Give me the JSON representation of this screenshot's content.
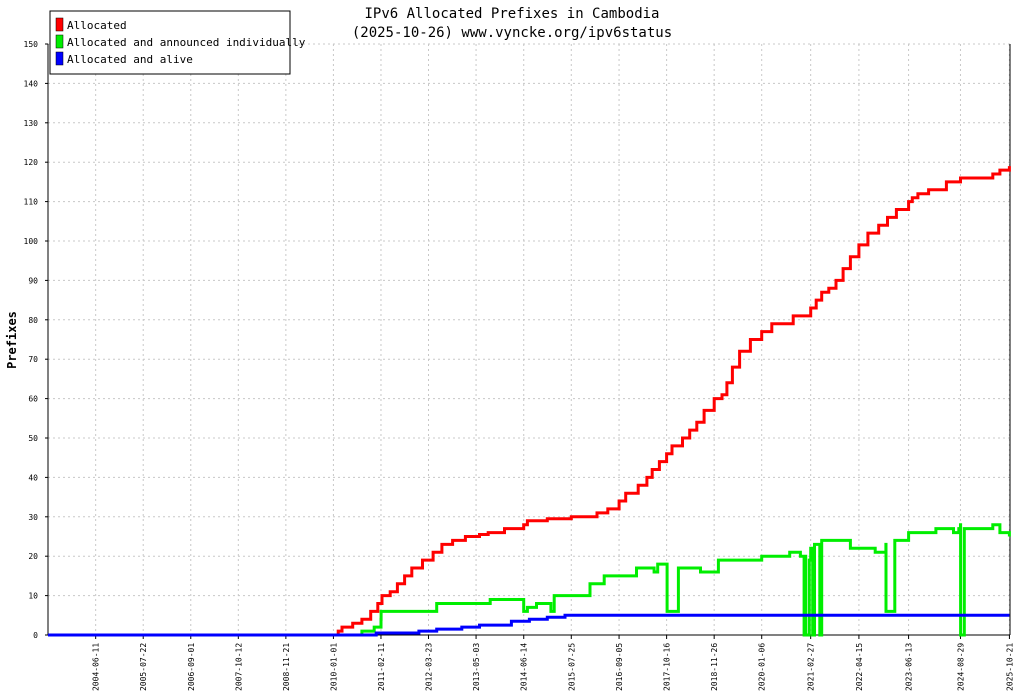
{
  "chart_data": {
    "type": "line",
    "title": "IPv6 Allocated Prefixes in Cambodia",
    "subtitle": "(2025-10-26) www.vyncke.org/ipv6status",
    "ylabel": "Prefixes",
    "xlabel": "",
    "ylim": [
      0,
      150
    ],
    "yticks": [
      0,
      10,
      20,
      30,
      40,
      50,
      60,
      70,
      80,
      90,
      100,
      110,
      120,
      130,
      140,
      150
    ],
    "xlim": [
      "2003-05-01",
      "2025-10-26"
    ],
    "xticks": [
      "2004-06-11",
      "2005-07-22",
      "2006-09-01",
      "2007-10-12",
      "2008-11-21",
      "2010-01-01",
      "2011-02-11",
      "2012-03-23",
      "2013-05-03",
      "2014-06-14",
      "2015-07-25",
      "2016-09-05",
      "2017-10-16",
      "2018-11-26",
      "2020-01-06",
      "2021-02-27",
      "2022-04-15",
      "2023-06-13",
      "2024-08-29",
      "2025-10-21"
    ],
    "grid": true,
    "legend_position": "top-left",
    "series": [
      {
        "name": "Allocated",
        "color": "#ff0000",
        "x": [
          "2003-05-01",
          "2010-01-01",
          "2010-02-11",
          "2010-03-15",
          "2010-06-15",
          "2010-09-01",
          "2010-11-15",
          "2011-01-15",
          "2011-02-20",
          "2011-05-01",
          "2011-07-01",
          "2011-09-01",
          "2011-11-01",
          "2012-02-01",
          "2012-05-01",
          "2012-07-15",
          "2012-10-15",
          "2013-02-01",
          "2013-06-01",
          "2013-08-15",
          "2014-01-01",
          "2014-06-14",
          "2014-07-15",
          "2015-01-01",
          "2015-07-25",
          "2015-08-01",
          "2016-03-01",
          "2016-06-01",
          "2016-09-05",
          "2016-11-01",
          "2017-02-15",
          "2017-05-01",
          "2017-06-15",
          "2017-08-15",
          "2017-10-16",
          "2017-12-01",
          "2018-03-01",
          "2018-05-01",
          "2018-07-01",
          "2018-09-01",
          "2018-11-26",
          "2019-02-01",
          "2019-03-15",
          "2019-05-01",
          "2019-07-01",
          "2019-10-01",
          "2020-01-06",
          "2020-04-01",
          "2020-10-01",
          "2021-02-27",
          "2021-04-15",
          "2021-06-01",
          "2021-08-01",
          "2021-10-01",
          "2021-12-01",
          "2022-02-01",
          "2022-04-15",
          "2022-07-01",
          "2022-10-01",
          "2022-12-15",
          "2023-03-01",
          "2023-06-13",
          "2023-07-15",
          "2023-09-01",
          "2023-12-01",
          "2024-05-01",
          "2024-08-29",
          "2025-02-01",
          "2025-06-01",
          "2025-08-01",
          "2025-10-21"
        ],
        "values": [
          0,
          0,
          1,
          2,
          3,
          4,
          6,
          8,
          10,
          11,
          13,
          15,
          17,
          19,
          21,
          23,
          24,
          25,
          25.5,
          26,
          27,
          28,
          29,
          29.5,
          30,
          30,
          31,
          32,
          34,
          36,
          38,
          40,
          42,
          44,
          46,
          48,
          50,
          52,
          54,
          57,
          60,
          61,
          64,
          68,
          72,
          75,
          77,
          79,
          81,
          83,
          85,
          87,
          88,
          90,
          93,
          96,
          99,
          102,
          104,
          106,
          108,
          110,
          111,
          112,
          113,
          115,
          116,
          116,
          117,
          118,
          119
        ]
      },
      {
        "name": "Allocated and announced individually",
        "color": "#00ee00",
        "x": [
          "2003-05-01",
          "2010-06-01",
          "2010-09-01",
          "2010-12-15",
          "2011-02-11",
          "2011-02-12",
          "2012-03-23",
          "2012-06-01",
          "2013-05-03",
          "2013-09-01",
          "2014-06-14",
          "2014-07-15",
          "2014-10-01",
          "2015-02-01",
          "2015-03-01",
          "2015-07-25",
          "2016-01-01",
          "2016-05-01",
          "2016-09-05",
          "2017-02-01",
          "2017-06-01",
          "2017-07-01",
          "2017-08-01",
          "2017-10-16",
          "2017-10-20",
          "2018-01-20",
          "2018-01-25",
          "2018-06-01",
          "2018-08-01",
          "2019-01-01",
          "2019-07-01",
          "2020-01-06",
          "2020-06-01",
          "2020-09-01",
          "2020-12-01",
          "2021-01-01",
          "2021-01-02",
          "2021-01-15",
          "2021-01-16",
          "2021-02-15",
          "2021-02-27",
          "2021-03-15",
          "2021-03-16",
          "2021-04-01",
          "2021-05-01",
          "2021-05-15",
          "2021-05-16",
          "2021-06-01",
          "2021-09-01",
          "2022-02-01",
          "2022-04-15",
          "2022-09-01",
          "2022-12-01",
          "2022-12-02",
          "2023-02-15",
          "2023-06-13",
          "2023-11-01",
          "2024-02-01",
          "2024-07-01",
          "2024-08-15",
          "2024-08-29",
          "2024-08-30",
          "2024-10-01",
          "2025-02-01",
          "2025-06-01",
          "2025-08-01",
          "2025-10-21"
        ],
        "values": [
          0,
          0,
          1,
          2,
          4,
          6,
          6,
          8,
          8,
          9,
          6,
          7,
          8,
          6,
          10,
          10,
          13,
          15,
          15,
          17,
          17,
          16,
          18,
          18,
          6,
          6,
          17,
          17,
          16,
          19,
          19,
          20,
          20,
          21,
          20,
          20,
          0,
          20,
          0,
          19,
          22,
          22,
          0,
          23,
          23,
          23,
          0,
          24,
          24,
          22,
          22,
          21,
          23,
          6,
          24,
          26,
          26,
          27,
          26,
          27,
          28,
          0,
          27,
          27,
          28,
          26,
          25
        ]
      },
      {
        "name": "Allocated and alive",
        "color": "#0000ff",
        "x": [
          "2003-05-01",
          "2011-01-01",
          "2011-05-01",
          "2012-01-01",
          "2012-06-01",
          "2013-01-01",
          "2013-06-01",
          "2014-03-01",
          "2014-08-01",
          "2015-01-01",
          "2015-06-01",
          "2025-10-21"
        ],
        "values": [
          0,
          0.5,
          0.5,
          1,
          1.5,
          2,
          2.5,
          3.5,
          4,
          4.5,
          5,
          5
        ]
      }
    ]
  }
}
